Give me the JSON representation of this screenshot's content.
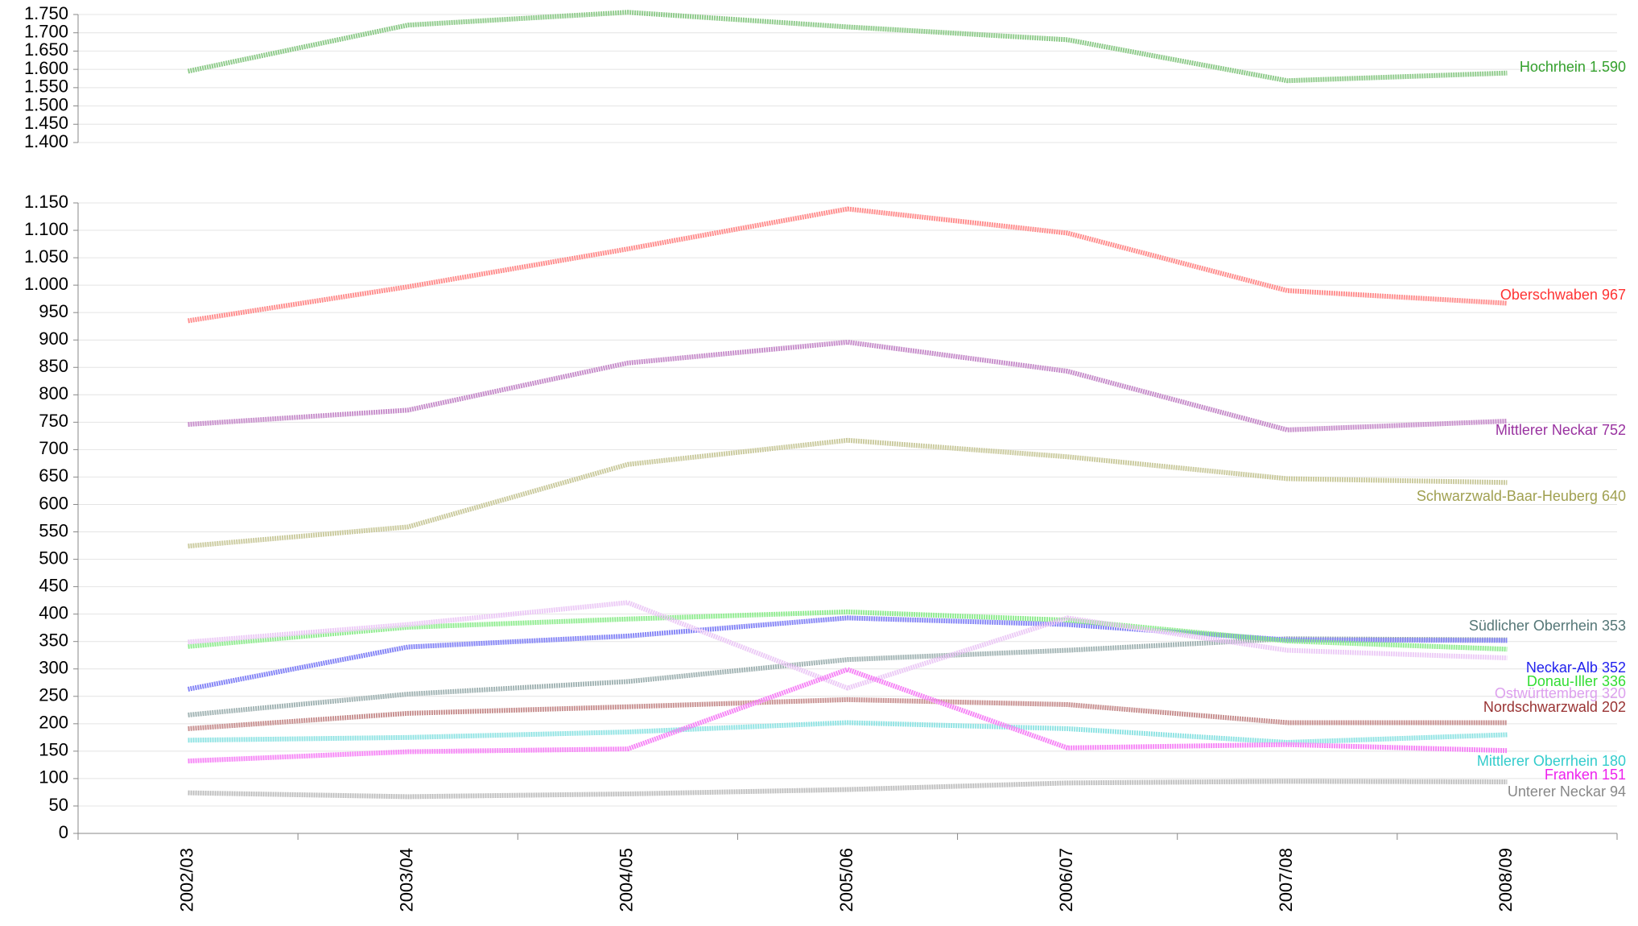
{
  "chart_data": [
    {
      "type": "line",
      "ylim": [
        1400,
        1750
      ],
      "yticks": [
        {
          "value": 1400,
          "label": "1.400"
        },
        {
          "value": 1450,
          "label": "1.450"
        },
        {
          "value": 1500,
          "label": "1.500"
        },
        {
          "value": 1550,
          "label": "1.550"
        },
        {
          "value": 1600,
          "label": "1.600"
        },
        {
          "value": 1650,
          "label": "1.650"
        },
        {
          "value": 1700,
          "label": "1.700"
        },
        {
          "value": 1750,
          "label": "1.750"
        }
      ],
      "grid": true,
      "series": [
        {
          "name": "Hochrhein",
          "color": "#33a02c",
          "values": [
            1595,
            1721,
            1756,
            1716,
            1681,
            1569,
            1590
          ],
          "value_labels": [
            null,
            null,
            null,
            null,
            null,
            null,
            "1.590"
          ]
        }
      ]
    },
    {
      "type": "line",
      "categories": [
        "2002/03",
        "2003/04",
        "2004/05",
        "2005/06",
        "2006/07",
        "2007/08",
        "2008/09"
      ],
      "ylim": [
        0,
        1150
      ],
      "yticks": [
        0,
        50,
        100,
        150,
        200,
        250,
        300,
        350,
        400,
        450,
        500,
        550,
        600,
        650,
        700,
        750,
        800,
        850,
        900,
        950,
        {
          "value": 1000,
          "label": "1.000"
        },
        {
          "value": 1050,
          "label": "1.050"
        },
        {
          "value": 1100,
          "label": "1.100"
        },
        {
          "value": 1150,
          "label": "1.150"
        }
      ],
      "grid": true,
      "series": [
        {
          "name": "Oberschwaben",
          "color": "#ff3333",
          "values": [
            935,
            997,
            1066,
            1139,
            1095,
            990,
            967
          ]
        },
        {
          "name": "Mittlerer Neckar",
          "color": "#9932a0",
          "values": [
            746,
            772,
            858,
            896,
            843,
            736,
            752
          ]
        },
        {
          "name": "Schwarzwald-Baar-Heuberg",
          "color": "#a0a050",
          "values": [
            524,
            559,
            673,
            717,
            687,
            647,
            640
          ]
        },
        {
          "name": "Südlicher Oberrhein",
          "color": "#557777",
          "values": [
            216,
            254,
            277,
            317,
            334,
            355,
            353
          ]
        },
        {
          "name": "Neckar-Alb",
          "color": "#2222ee",
          "values": [
            263,
            340,
            360,
            393,
            381,
            353,
            352
          ]
        },
        {
          "name": "Donau-Iller",
          "color": "#33dd33",
          "values": [
            341,
            376,
            391,
            404,
            389,
            351,
            336
          ]
        },
        {
          "name": "Ostwürttemberg",
          "color": "#dda0ee",
          "values": [
            349,
            381,
            421,
            265,
            393,
            334,
            320
          ]
        },
        {
          "name": "Nordschwarzwald",
          "color": "#993333",
          "values": [
            191,
            219,
            231,
            244,
            235,
            202,
            202
          ]
        },
        {
          "name": "Mittlerer Oberrhein",
          "color": "#33cccc",
          "values": [
            170,
            175,
            185,
            202,
            191,
            166,
            180
          ]
        },
        {
          "name": "Franken",
          "color": "#ee22ee",
          "values": [
            132,
            149,
            154,
            299,
            156,
            162,
            151
          ]
        },
        {
          "name": "Unterer Neckar",
          "color": "#888888",
          "values": [
            74,
            67,
            72,
            80,
            92,
            95,
            94
          ]
        }
      ]
    }
  ]
}
